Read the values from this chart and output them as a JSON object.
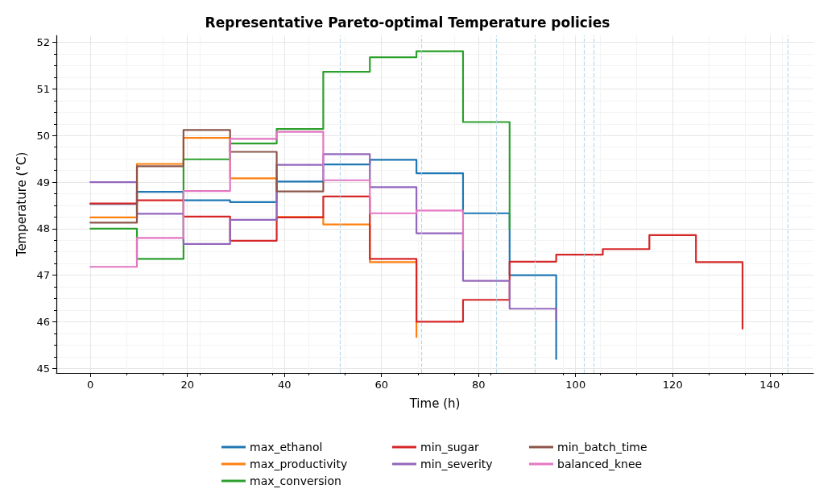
{
  "chart_data": {
    "type": "step",
    "title": "Representative Pareto-optimal Temperature policies",
    "xlabel": "Time (h)",
    "ylabel": "Temperature (°C)",
    "xlim": [
      -7,
      149
    ],
    "xticks": [
      0,
      20,
      40,
      60,
      80,
      100,
      120,
      140
    ],
    "ylim": [
      44.9,
      52.15
    ],
    "yticks": [
      45,
      46,
      47,
      48,
      49,
      50,
      51,
      52
    ],
    "grid": true,
    "legend": "bottom",
    "line_style": "solid",
    "series": [
      {
        "name": "max_ethanol",
        "color": "#1f77b4",
        "x": [
          0,
          9.6,
          19.2,
          28.8,
          38.4,
          48,
          57.6,
          67.2,
          76.8,
          86.4,
          96
        ],
        "values": [
          48.53,
          48.79,
          48.61,
          48.57,
          49.01,
          49.38,
          49.48,
          49.19,
          48.33,
          47.0,
          45.2
        ]
      },
      {
        "name": "max_productivity",
        "color": "#ff7f0e",
        "x": [
          0,
          9.6,
          19.2,
          28.8,
          38.4,
          48,
          57.6,
          67.2
        ],
        "values": [
          48.24,
          49.39,
          49.95,
          49.08,
          48.25,
          48.09,
          47.28,
          45.67
        ]
      },
      {
        "name": "max_conversion",
        "color": "#2ca02c",
        "x": [
          0,
          9.6,
          19.2,
          28.8,
          38.4,
          48,
          57.6,
          67.2,
          76.8,
          86.4
        ],
        "values": [
          48.0,
          47.35,
          49.49,
          49.83,
          50.14,
          51.37,
          51.68,
          51.81,
          50.29,
          47.98
        ]
      },
      {
        "name": "min_sugar",
        "color": "#d62728",
        "x": [
          0,
          9.6,
          19.2,
          28.8,
          38.4,
          48,
          57.6,
          67.2,
          76.8,
          86.4,
          96,
          105.6,
          115.2,
          124.8,
          134.4
        ],
        "values": [
          48.54,
          48.61,
          48.26,
          47.74,
          48.24,
          48.69,
          47.35,
          46.0,
          46.47,
          47.29,
          47.44,
          47.56,
          47.86,
          47.28,
          45.85
        ]
      },
      {
        "name": "min_severity",
        "color": "#9467bd",
        "x": [
          0,
          9.6,
          19.2,
          28.8,
          38.4,
          48,
          57.6,
          67.2,
          76.8,
          86.4,
          96
        ],
        "values": [
          49.0,
          48.32,
          47.67,
          48.19,
          49.37,
          49.6,
          48.89,
          47.9,
          46.88,
          46.28,
          46.03
        ]
      },
      {
        "name": "min_batch_time",
        "color": "#8c564b",
        "x": [
          0,
          9.6,
          19.2,
          28.8,
          38.4,
          48
        ],
        "values": [
          48.13,
          49.34,
          50.12,
          49.65,
          48.8,
          49.0
        ]
      },
      {
        "name": "balanced_knee",
        "color": "#e377c2",
        "x": [
          0,
          9.6,
          19.2,
          28.8,
          38.4,
          48,
          57.6,
          67.2,
          76.8
        ],
        "values": [
          47.18,
          47.8,
          48.81,
          49.93,
          50.08,
          49.04,
          48.33,
          48.39,
          47.54
        ]
      }
    ],
    "ref_lines": [
      {
        "axis": "x",
        "value": 51.4,
        "color": "#a6cee3",
        "line_style": "dashed"
      },
      {
        "axis": "x",
        "value": 68.2,
        "color": "#a6cee3",
        "line_style": "dashed"
      },
      {
        "axis": "x",
        "value": 83.6,
        "color": "#a6cee3",
        "line_style": "dashed"
      },
      {
        "axis": "x",
        "value": 91.7,
        "color": "#a6cee3",
        "line_style": "dashed"
      },
      {
        "axis": "x",
        "value": 101.7,
        "color": "#a6cee3",
        "line_style": "dashed"
      },
      {
        "axis": "x",
        "value": 103.8,
        "color": "#a6cee3",
        "line_style": "dashed"
      },
      {
        "axis": "x",
        "value": 143.8,
        "color": "#a6cee3",
        "line_style": "dashed"
      }
    ]
  }
}
